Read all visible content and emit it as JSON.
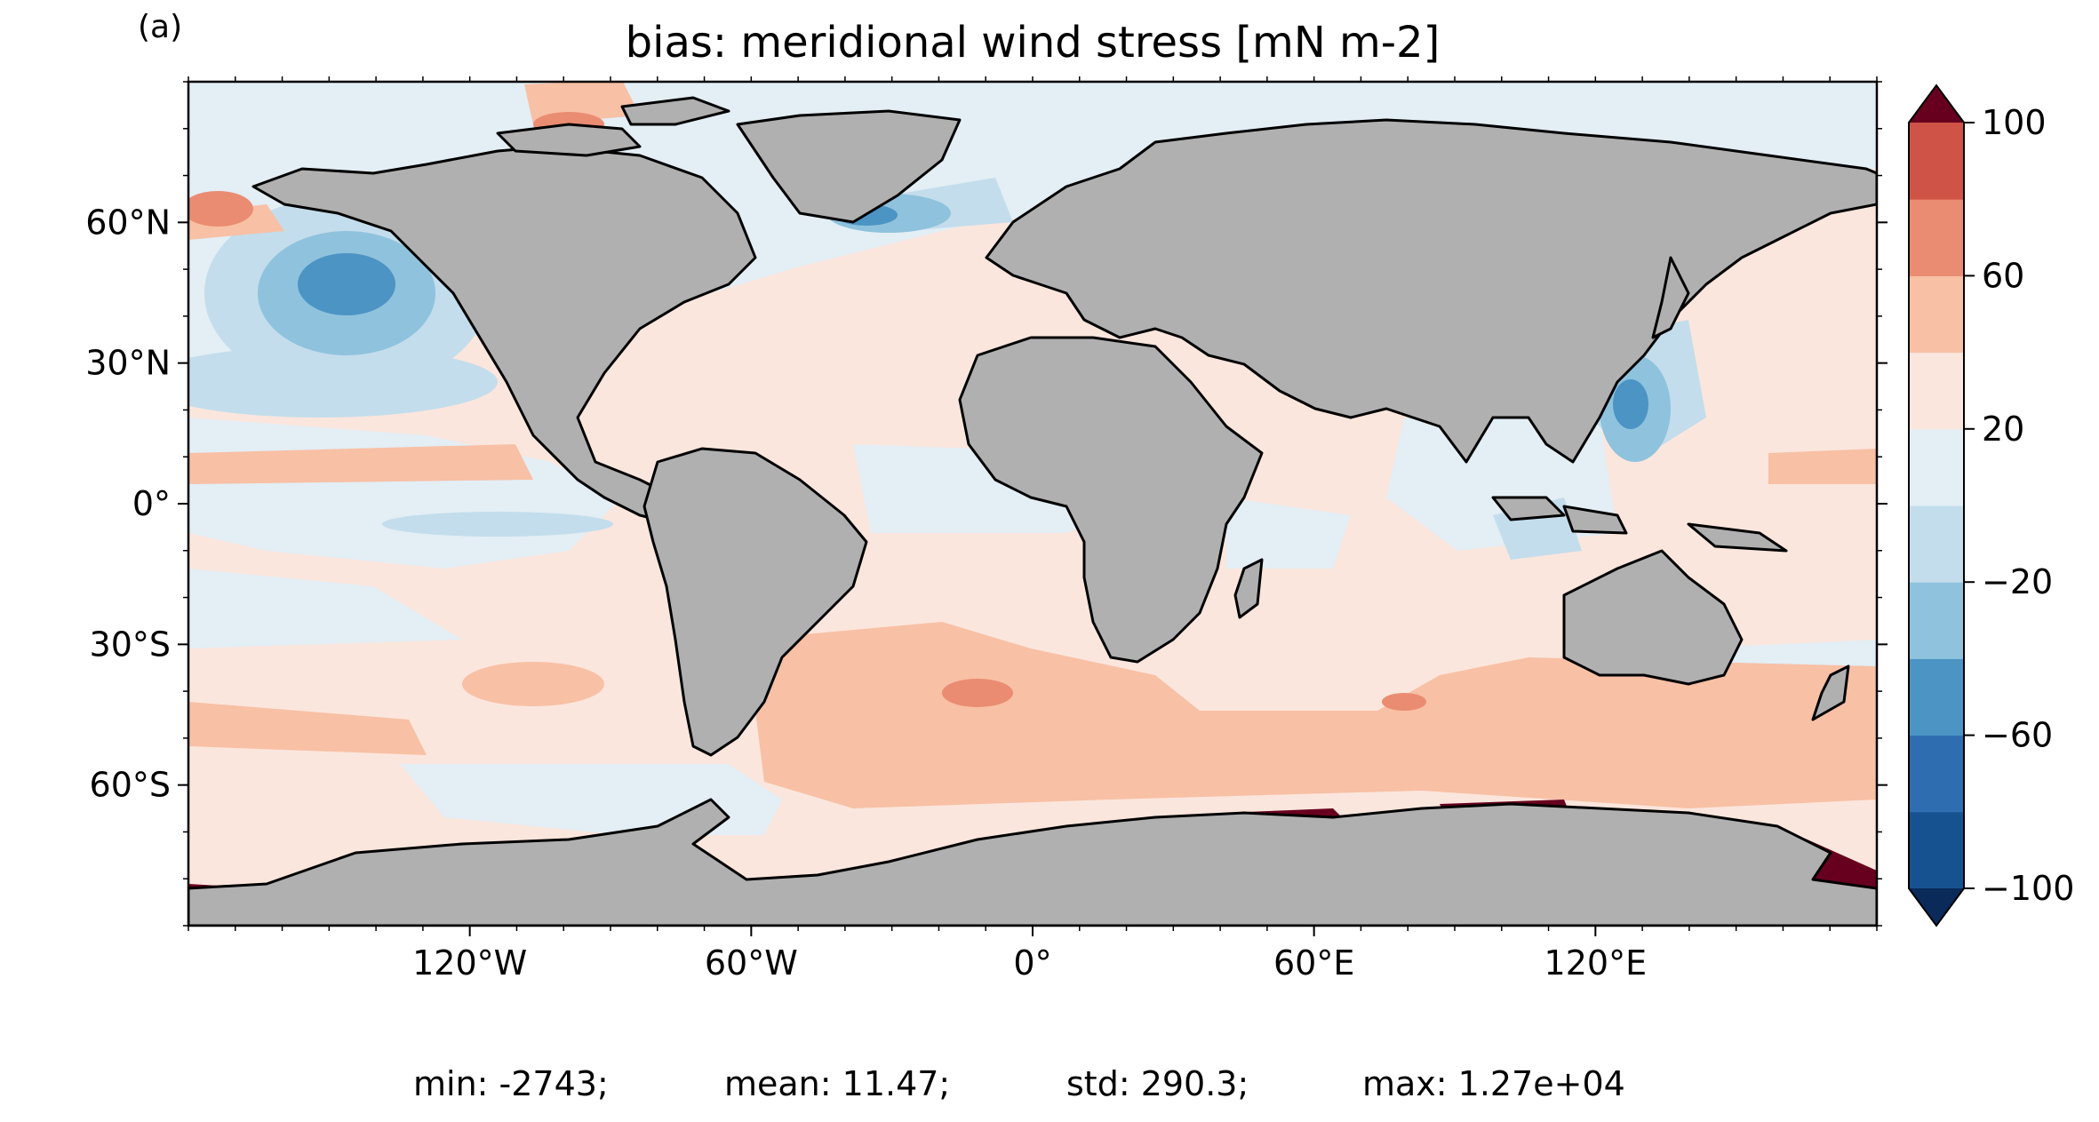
{
  "panel_label": "(a)",
  "title": "bias: meridional wind stress [mN m-2]",
  "chart_data": {
    "type": "heatmap",
    "projection": "PlateCarree",
    "lon_range": [
      -180,
      180
    ],
    "lat_range": [
      -90,
      90
    ],
    "x_ticks": [
      {
        "lon": -120,
        "label": "120°W"
      },
      {
        "lon": -60,
        "label": "60°W"
      },
      {
        "lon": 0,
        "label": "0°"
      },
      {
        "lon": 60,
        "label": "60°E"
      },
      {
        "lon": 120,
        "label": "120°E"
      }
    ],
    "y_ticks": [
      {
        "lat": 60,
        "label": "60°N"
      },
      {
        "lat": 30,
        "label": "30°N"
      },
      {
        "lat": 0,
        "label": "0°"
      },
      {
        "lat": -30,
        "label": "30°S"
      },
      {
        "lat": -60,
        "label": "60°S"
      }
    ],
    "colorbar": {
      "levels": [
        -100,
        -80,
        -60,
        -40,
        -20,
        0,
        20,
        40,
        60,
        80,
        100
      ],
      "tick_labels": [
        "100",
        "60",
        "20",
        "−20",
        "−60",
        "−100"
      ],
      "tick_values": [
        100,
        60,
        20,
        -20,
        -60,
        -100
      ],
      "colors": [
        "#175290",
        "#2f6db1",
        "#4b94c4",
        "#8fc2dd",
        "#c3ddec",
        "#e3eef5",
        "#fbe6dd",
        "#f8c0a5",
        "#ea8c71",
        "#cf5346",
        "#a51429"
      ],
      "extend_under": "#0a2a5a",
      "extend_over": "#67001f"
    },
    "land_color": "#b0b0b0",
    "ocean_base_color": "#fbe6dd"
  },
  "stats": {
    "min": "min: -2743;",
    "mean": "mean: 11.47;",
    "std": "std: 290.3;",
    "max": "max: 1.27e+04"
  }
}
